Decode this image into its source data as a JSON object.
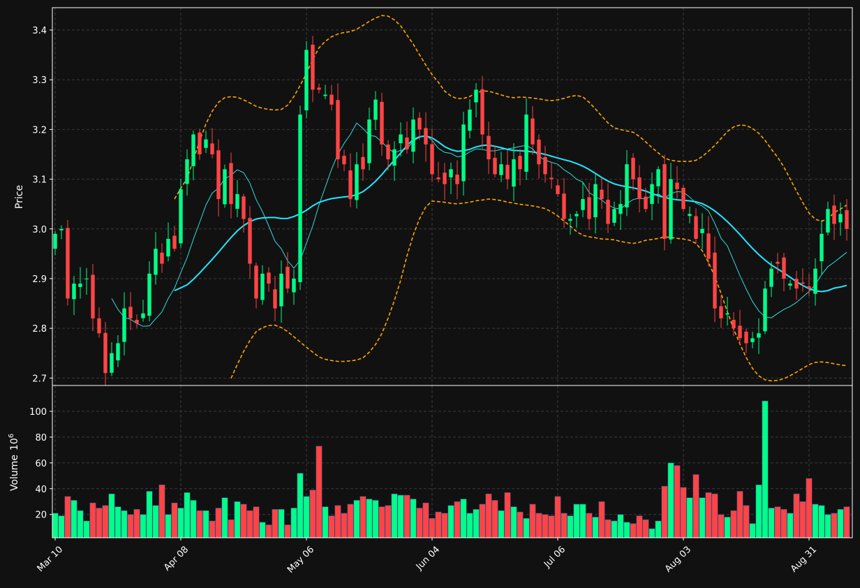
{
  "chart_data": {
    "type": "candlestick",
    "price_panel": {
      "ylabel": "Price",
      "ylim": [
        2.685,
        3.445
      ],
      "yticks": [
        "2.7",
        "2.8",
        "2.9",
        "3.0",
        "3.1",
        "3.2",
        "3.3",
        "3.4"
      ],
      "grid": true
    },
    "volume_panel": {
      "ylabel": "Volume",
      "ylabel_exponent": "10",
      "ylabel_power": "6",
      "ylim": [
        2,
        120
      ],
      "yticks": [
        "20",
        "40",
        "60",
        "80",
        "100"
      ],
      "grid": true
    },
    "x_tick_labels": [
      "Mar 10",
      "Apr 08",
      "May 06",
      "Jun 04",
      "Jul 06",
      "Aug 03",
      "Aug 31"
    ],
    "x_tick_bar_index": [
      0,
      20,
      40,
      60,
      80,
      100,
      120
    ],
    "closes": [
      2.99,
      3.0,
      2.86,
      2.89,
      2.89,
      2.9,
      2.82,
      2.79,
      2.71,
      2.75,
      2.77,
      2.84,
      2.82,
      2.81,
      2.83,
      2.91,
      2.96,
      2.93,
      2.98,
      2.96,
      3.08,
      3.14,
      3.19,
      3.15,
      3.18,
      3.15,
      3.06,
      3.12,
      3.05,
      3.07,
      3.02,
      2.93,
      2.86,
      2.91,
      2.89,
      2.84,
      2.91,
      2.88,
      2.9,
      3.23,
      3.36,
      3.28,
      3.28,
      3.27,
      3.25,
      3.14,
      3.13,
      3.06,
      3.13,
      3.12,
      3.22,
      3.26,
      3.17,
      3.14,
      3.16,
      3.19,
      3.16,
      3.22,
      3.2,
      3.17,
      3.11,
      3.1,
      3.09,
      3.12,
      3.09,
      3.21,
      3.24,
      3.28,
      3.19,
      3.14,
      3.11,
      3.13,
      3.1,
      3.14,
      3.12,
      3.23,
      3.17,
      3.13,
      3.11,
      3.1,
      3.07,
      3.02,
      3.02,
      3.03,
      3.06,
      3.02,
      3.09,
      3.06,
      3.01,
      3.04,
      3.05,
      3.13,
      3.1,
      3.06,
      3.04,
      3.09,
      3.12,
      2.98,
      3.1,
      3.08,
      3.04,
      3.03,
      2.98,
      3.0,
      2.94,
      2.84,
      2.82,
      2.83,
      2.8,
      2.78,
      2.77,
      2.78,
      2.79,
      2.88,
      2.92,
      2.93,
      2.9,
      2.89,
      2.88,
      2.89,
      2.88,
      2.92,
      2.99,
      3.04,
      3.01,
      3.03,
      3.0
    ],
    "volumes_millions": [
      21,
      19,
      34,
      31,
      23,
      15,
      29,
      25,
      27,
      36,
      26,
      23,
      20,
      24,
      20,
      38,
      27,
      43,
      20,
      29,
      25,
      37,
      31,
      23,
      23,
      15,
      25,
      33,
      16,
      30,
      28,
      23,
      26,
      14,
      12,
      24,
      24,
      12,
      25,
      52,
      34,
      39,
      73,
      26,
      19,
      27,
      21,
      28,
      31,
      34,
      32,
      31,
      26,
      27,
      36,
      35,
      35,
      32,
      25,
      29,
      17,
      22,
      21,
      27,
      30,
      32,
      21,
      24,
      28,
      36,
      31,
      23,
      37,
      26,
      22,
      17,
      28,
      21,
      20,
      19,
      34,
      21,
      19,
      28,
      28,
      21,
      18,
      30,
      16,
      15,
      20,
      14,
      13,
      19,
      16,
      9,
      15,
      42,
      60,
      58,
      41,
      33,
      51,
      33,
      37,
      36,
      20,
      18,
      23,
      38,
      27,
      13,
      43,
      108,
      25,
      26,
      24,
      21,
      36,
      30,
      48,
      28,
      27,
      20,
      21,
      24,
      26
    ]
  }
}
